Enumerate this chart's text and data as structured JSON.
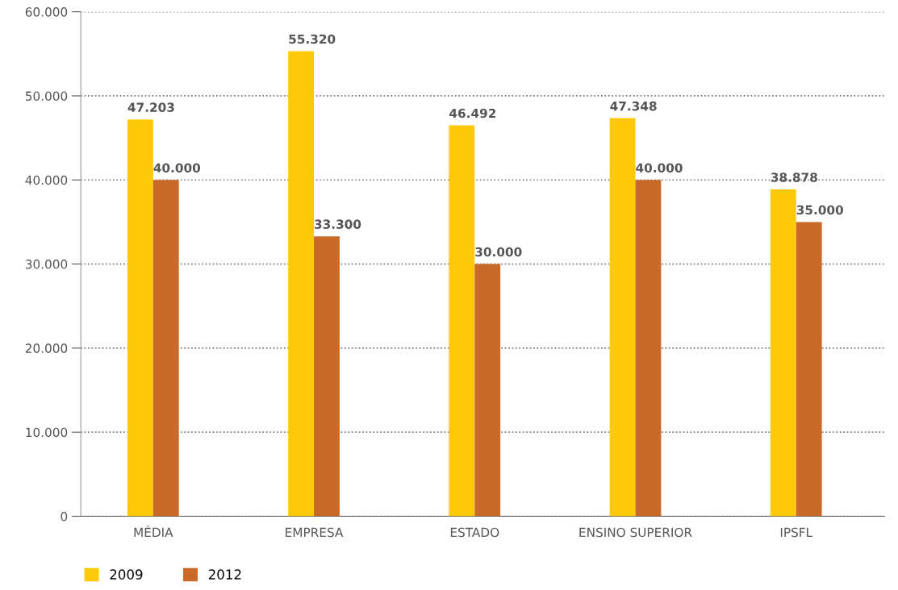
{
  "chart_data": {
    "type": "bar",
    "categories": [
      "MÉDIA",
      "EMPRESA",
      "ESTADO",
      "ENSINO SUPERIOR",
      "IPSFL"
    ],
    "series": [
      {
        "name": "2009",
        "color": "#ffc90b",
        "values": [
          47203,
          55320,
          46492,
          47348,
          38878
        ],
        "value_labels": [
          "47.203",
          "55.320",
          "46.492",
          "47.348",
          "38.878"
        ]
      },
      {
        "name": "2012",
        "color": "#c96a28",
        "values": [
          40000,
          33300,
          30000,
          40000,
          35000
        ],
        "value_labels": [
          "40.000",
          "33.300",
          "30.000",
          "40.000",
          "35.000"
        ]
      }
    ],
    "ylim": [
      0,
      60000
    ],
    "yticks": [
      {
        "value": 0,
        "label": "0"
      },
      {
        "value": 10000,
        "label": "10.000"
      },
      {
        "value": 20000,
        "label": "20.000"
      },
      {
        "value": 30000,
        "label": "30.000"
      },
      {
        "value": 40000,
        "label": "40.000"
      },
      {
        "value": 50000,
        "label": "50.000"
      },
      {
        "value": 60000,
        "label": "60.000"
      }
    ],
    "grid": "y",
    "legend": "bottom left"
  }
}
